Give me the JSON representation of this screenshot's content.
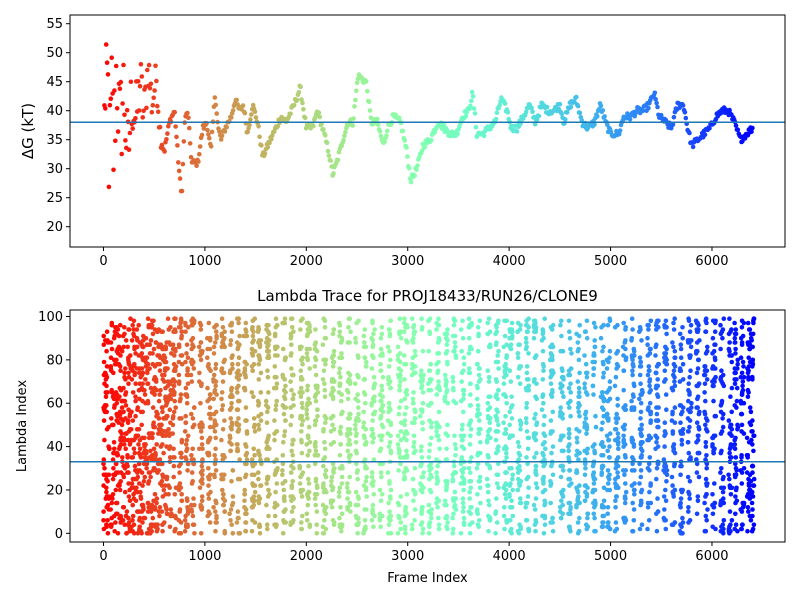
{
  "chart_data": [
    {
      "type": "scatter",
      "title": "",
      "xlabel": "",
      "ylabel": "ΔG (kT)",
      "xlim": [
        -330,
        6720
      ],
      "ylim": [
        16.5,
        56.5
      ],
      "xticks": [
        0,
        1000,
        2000,
        3000,
        4000,
        5000,
        6000
      ],
      "yticks": [
        20,
        25,
        30,
        35,
        40,
        45,
        50,
        55
      ],
      "hline": 38,
      "hline_color": "#1f77b4",
      "colormap": "rainbow (red at start → violet at end)",
      "trace_keypoints": [
        [
          0,
          55
        ],
        [
          20,
          35
        ],
        [
          40,
          46
        ],
        [
          60,
          30
        ],
        [
          80,
          42
        ],
        [
          100,
          33
        ],
        [
          130,
          48
        ],
        [
          160,
          36
        ],
        [
          200,
          44
        ],
        [
          240,
          31
        ],
        [
          280,
          43
        ],
        [
          320,
          38
        ],
        [
          360,
          45
        ],
        [
          400,
          39
        ],
        [
          440,
          48
        ],
        [
          480,
          41
        ],
        [
          520,
          46
        ],
        [
          560,
          36
        ],
        [
          600,
          33
        ],
        [
          650,
          38
        ],
        [
          700,
          40
        ],
        [
          740,
          31
        ],
        [
          770,
          25
        ],
        [
          800,
          38
        ],
        [
          830,
          40
        ],
        [
          870,
          31
        ],
        [
          930,
          31
        ],
        [
          980,
          37
        ],
        [
          1020,
          38
        ],
        [
          1060,
          33
        ],
        [
          1100,
          43
        ],
        [
          1130,
          37
        ],
        [
          1160,
          35
        ],
        [
          1200,
          37
        ],
        [
          1260,
          39
        ],
        [
          1300,
          42
        ],
        [
          1340,
          40
        ],
        [
          1380,
          41
        ],
        [
          1420,
          36
        ],
        [
          1470,
          41
        ],
        [
          1520,
          38
        ],
        [
          1570,
          32
        ],
        [
          1620,
          34
        ],
        [
          1700,
          37
        ],
        [
          1750,
          39
        ],
        [
          1800,
          38
        ],
        [
          1880,
          41
        ],
        [
          1940,
          44
        ],
        [
          2000,
          37
        ],
        [
          2060,
          37
        ],
        [
          2110,
          40
        ],
        [
          2160,
          37
        ],
        [
          2220,
          33
        ],
        [
          2260,
          29
        ],
        [
          2300,
          31
        ],
        [
          2360,
          35
        ],
        [
          2410,
          38
        ],
        [
          2460,
          38
        ],
        [
          2510,
          46
        ],
        [
          2590,
          45
        ],
        [
          2640,
          38
        ],
        [
          2700,
          38
        ],
        [
          2760,
          34
        ],
        [
          2800,
          37
        ],
        [
          2860,
          39
        ],
        [
          2930,
          38
        ],
        [
          2990,
          33
        ],
        [
          3030,
          28
        ],
        [
          3090,
          30
        ],
        [
          3150,
          34
        ],
        [
          3220,
          35
        ],
        [
          3300,
          38
        ],
        [
          3360,
          37
        ],
        [
          3420,
          36
        ],
        [
          3480,
          36
        ],
        [
          3540,
          39
        ],
        [
          3600,
          40
        ],
        [
          3640,
          43
        ],
        [
          3680,
          36
        ],
        [
          3740,
          36
        ],
        [
          3800,
          37
        ],
        [
          3860,
          38
        ],
        [
          3920,
          42
        ],
        [
          3980,
          40
        ],
        [
          4020,
          37
        ],
        [
          4080,
          37
        ],
        [
          4140,
          39
        ],
        [
          4200,
          41
        ],
        [
          4260,
          38
        ],
        [
          4320,
          41
        ],
        [
          4380,
          40
        ],
        [
          4440,
          40
        ],
        [
          4500,
          41
        ],
        [
          4540,
          38
        ],
        [
          4600,
          41
        ],
        [
          4660,
          42
        ],
        [
          4720,
          38
        ],
        [
          4780,
          37
        ],
        [
          4840,
          38
        ],
        [
          4900,
          41
        ],
        [
          4950,
          38
        ],
        [
          5000,
          36
        ],
        [
          5080,
          36
        ],
        [
          5130,
          39
        ],
        [
          5200,
          39
        ],
        [
          5260,
          40
        ],
        [
          5320,
          40
        ],
        [
          5380,
          41
        ],
        [
          5430,
          43
        ],
        [
          5480,
          39
        ],
        [
          5540,
          38
        ],
        [
          5600,
          37
        ],
        [
          5660,
          41
        ],
        [
          5720,
          41
        ],
        [
          5760,
          37
        ],
        [
          5800,
          34
        ],
        [
          5860,
          35
        ],
        [
          5920,
          36
        ],
        [
          5980,
          37
        ],
        [
          6040,
          39
        ],
        [
          6100,
          40
        ],
        [
          6160,
          40
        ],
        [
          6220,
          38
        ],
        [
          6280,
          35
        ],
        [
          6340,
          36
        ],
        [
          6400,
          37
        ]
      ]
    },
    {
      "type": "scatter",
      "title": "Lambda Trace for PROJ18433/RUN26/CLONE9",
      "xlabel": "Frame Index",
      "ylabel": "Lambda Index",
      "xlim": [
        -330,
        6720
      ],
      "ylim": [
        -4,
        103
      ],
      "xticks": [
        0,
        1000,
        2000,
        3000,
        4000,
        5000,
        6000
      ],
      "yticks": [
        0,
        20,
        40,
        60,
        80,
        100
      ],
      "hline": 33,
      "hline_color": "#1f77b4",
      "colormap": "rainbow (red at start → violet at end)",
      "description_ranges": "Points span lambda 0–99 throughout frames 0–6400, clustered in vertical bursts",
      "burst_centers": [
        30,
        100,
        160,
        220,
        280,
        340,
        400,
        460,
        520,
        580,
        640,
        700,
        760,
        820,
        880,
        960,
        1040,
        1100,
        1180,
        1260,
        1330,
        1400,
        1480,
        1540,
        1620,
        1700,
        1780,
        1860,
        1950,
        2020,
        2100,
        2180,
        2260,
        2340,
        2420,
        2500,
        2580,
        2660,
        2740,
        2820,
        2920,
        2980,
        3060,
        3140,
        3220,
        3300,
        3380,
        3460,
        3540,
        3620,
        3700,
        3800,
        3880,
        3960,
        4020,
        4100,
        4180,
        4260,
        4340,
        4420,
        4520,
        4600,
        4680,
        4760,
        4840,
        4920,
        4980,
        5060,
        5140,
        5220,
        5300,
        5380,
        5460,
        5540,
        5620,
        5700,
        5780,
        5860,
        5940,
        6020,
        6100,
        6180,
        6240,
        6300,
        6360,
        6400
      ]
    }
  ]
}
